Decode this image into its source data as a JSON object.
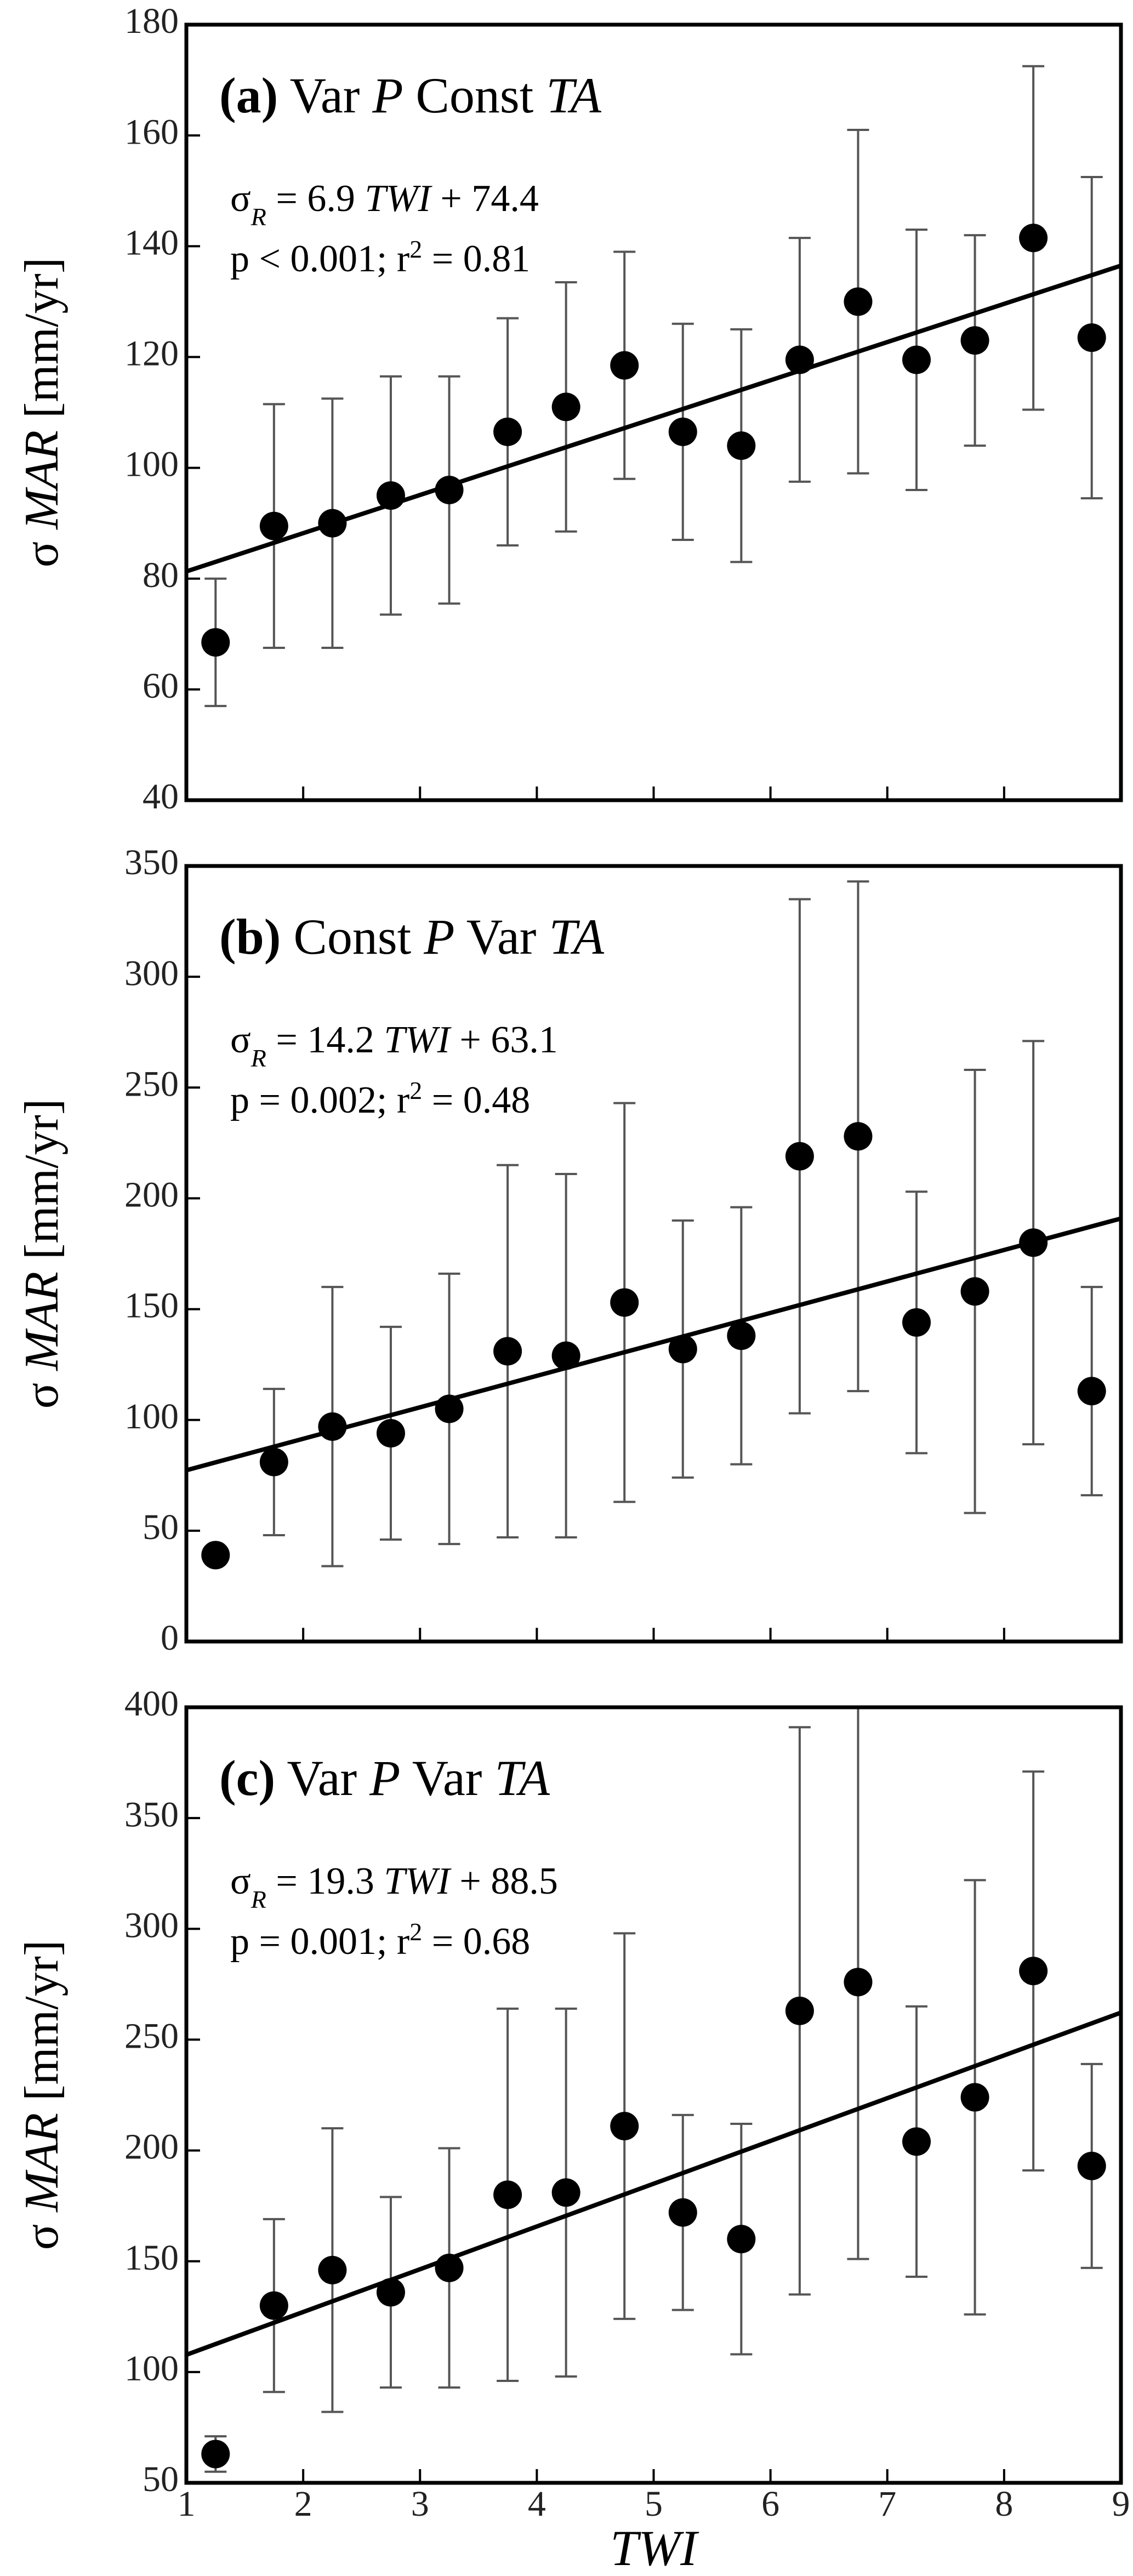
{
  "chart_data": [
    {
      "type": "scatter",
      "title_parts": [
        {
          "text": "(a)",
          "style": "bold"
        },
        {
          "text": " Var "
        },
        {
          "text": "P",
          "style": "italic"
        },
        {
          "text": " Const "
        },
        {
          "text": "TA",
          "style": "italic"
        }
      ],
      "equation": {
        "lhs": "σ",
        "sub": "R",
        "eq": " = ",
        "slope": 6.9,
        "var": " TWI",
        "plus": " + ",
        "intercept": 74.4
      },
      "stats": {
        "text": "p < 0.001; r",
        "sup": "2",
        "rest": " = 0.81"
      },
      "ylabel_parts": [
        {
          "text": "σ "
        },
        {
          "text": "MAR",
          "style": "italic"
        },
        {
          "text": " [mm/yr]"
        }
      ],
      "x": [
        1.25,
        1.75,
        2.25,
        2.75,
        3.25,
        3.75,
        4.25,
        4.75,
        5.25,
        5.75,
        6.25,
        6.75,
        7.25,
        7.75,
        8.25,
        8.75
      ],
      "values": [
        68.5,
        89.5,
        90,
        95,
        96,
        106.5,
        111,
        118.5,
        106.5,
        104,
        119.5,
        130,
        119.5,
        123,
        141.5,
        123.5
      ],
      "errors": [
        11.5,
        22,
        22.5,
        21.5,
        20.5,
        20.5,
        22.5,
        20.5,
        19.5,
        21,
        22,
        31,
        23.5,
        19,
        31,
        29
      ],
      "xlim": [
        1,
        9
      ],
      "xticks": [
        1,
        2,
        3,
        4,
        5,
        6,
        7,
        8,
        9
      ],
      "ylim": [
        40,
        180
      ],
      "yticks": [
        40,
        60,
        80,
        100,
        120,
        140,
        160,
        180
      ],
      "color": "#000000",
      "error_color": "#555555"
    },
    {
      "type": "scatter",
      "title_parts": [
        {
          "text": "(b)",
          "style": "bold"
        },
        {
          "text": " Const "
        },
        {
          "text": "P",
          "style": "italic"
        },
        {
          "text": " Var "
        },
        {
          "text": "TA",
          "style": "italic"
        }
      ],
      "equation": {
        "lhs": "σ",
        "sub": "R",
        "eq": " = ",
        "slope": 14.2,
        "var": " TWI",
        "plus": " + ",
        "intercept": 63.1
      },
      "stats": {
        "text": "p = 0.002; r",
        "sup": "2",
        "rest": " = 0.48"
      },
      "ylabel_parts": [
        {
          "text": "σ "
        },
        {
          "text": "MAR",
          "style": "italic"
        },
        {
          "text": " [mm/yr]"
        }
      ],
      "x": [
        1.25,
        1.75,
        2.25,
        2.75,
        3.25,
        3.75,
        4.25,
        4.75,
        5.25,
        5.75,
        6.25,
        6.75,
        7.25,
        7.75,
        8.25,
        8.75
      ],
      "values": [
        39,
        81,
        97,
        94,
        105,
        131,
        129,
        153,
        132,
        138,
        219,
        228,
        144,
        158,
        180,
        113
      ],
      "errors": [
        null,
        33,
        63,
        48,
        61,
        84,
        82,
        90,
        58,
        58,
        116,
        115,
        59,
        100,
        91,
        47
      ],
      "xlim": [
        1,
        9
      ],
      "xticks": [
        1,
        2,
        3,
        4,
        5,
        6,
        7,
        8,
        9
      ],
      "ylim": [
        0,
        350
      ],
      "yticks": [
        0,
        50,
        100,
        150,
        200,
        250,
        300,
        350
      ],
      "color": "#000000",
      "error_color": "#555555"
    },
    {
      "type": "scatter",
      "title_parts": [
        {
          "text": "(c)",
          "style": "bold"
        },
        {
          "text": " Var "
        },
        {
          "text": "P",
          "style": "italic"
        },
        {
          "text": " Var "
        },
        {
          "text": "TA",
          "style": "italic"
        }
      ],
      "equation": {
        "lhs": "σ",
        "sub": "R",
        "eq": " = ",
        "slope": 19.3,
        "var": " TWI",
        "plus": " + ",
        "intercept": 88.5
      },
      "stats": {
        "text": "p = 0.001; r",
        "sup": "2",
        "rest": " = 0.68"
      },
      "ylabel_parts": [
        {
          "text": "σ "
        },
        {
          "text": "MAR",
          "style": "italic"
        },
        {
          "text": " [mm/yr]"
        }
      ],
      "xlabel": "TWI",
      "xtick_labels": true,
      "x": [
        1.25,
        1.75,
        2.25,
        2.75,
        3.25,
        3.75,
        4.25,
        4.75,
        5.25,
        5.75,
        6.25,
        6.75,
        7.25,
        7.75,
        8.25,
        8.75
      ],
      "values": [
        63,
        130,
        146,
        136,
        147,
        180,
        181,
        211,
        172,
        160,
        263,
        276,
        204,
        224,
        281,
        193
      ],
      "errors": [
        8,
        39,
        64,
        43,
        54,
        84,
        83,
        87,
        44,
        52,
        128,
        125,
        61,
        98,
        90,
        46
      ],
      "xlim": [
        1,
        9
      ],
      "xticks": [
        1,
        2,
        3,
        4,
        5,
        6,
        7,
        8,
        9
      ],
      "ylim": [
        50,
        400
      ],
      "yticks": [
        50,
        100,
        150,
        200,
        250,
        300,
        350,
        400
      ],
      "color": "#000000",
      "error_color": "#555555"
    }
  ]
}
